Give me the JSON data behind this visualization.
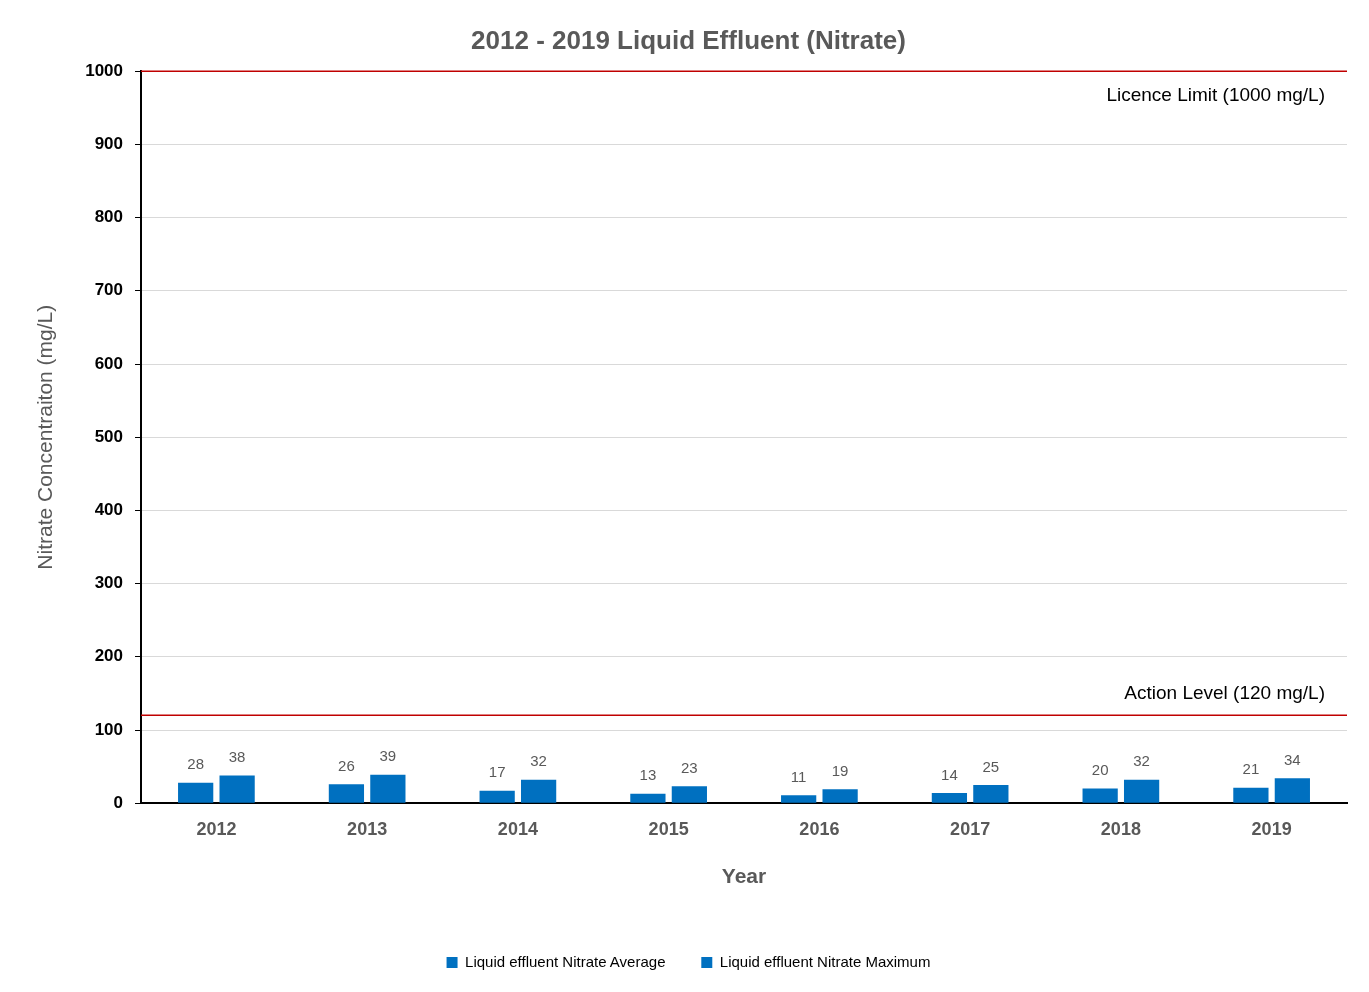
{
  "chart_data": {
    "type": "bar",
    "title": "2012 - 2019 Liquid Effluent (Nitrate)",
    "xlabel": "Year",
    "ylabel": "Nitrate Concentraiton (mg/L)",
    "categories": [
      "2012",
      "2013",
      "2014",
      "2015",
      "2016",
      "2017",
      "2018",
      "2019"
    ],
    "series": [
      {
        "name": "Liquid effluent Nitrate Average",
        "color": "#0070c0",
        "values": [
          28,
          26,
          17,
          13,
          11,
          14,
          20,
          21
        ]
      },
      {
        "name": "Liquid effluent Nitrate Maximum",
        "color": "#0070c0",
        "values": [
          38,
          39,
          32,
          23,
          19,
          25,
          32,
          34
        ]
      }
    ],
    "ylim": [
      0,
      1000
    ],
    "yticks": [
      0,
      100,
      200,
      300,
      400,
      500,
      600,
      700,
      800,
      900,
      1000
    ],
    "ref_lines": [
      {
        "axis": "y",
        "value": 1000,
        "label": "Licence Limit (1000 mg/L)",
        "color": "#c00000"
      },
      {
        "axis": "y",
        "value": 120,
        "label": "Action Level (120 mg/L)",
        "color": "#c00000"
      }
    ],
    "grid": "y",
    "legend": "bottom",
    "data_labels": true
  }
}
